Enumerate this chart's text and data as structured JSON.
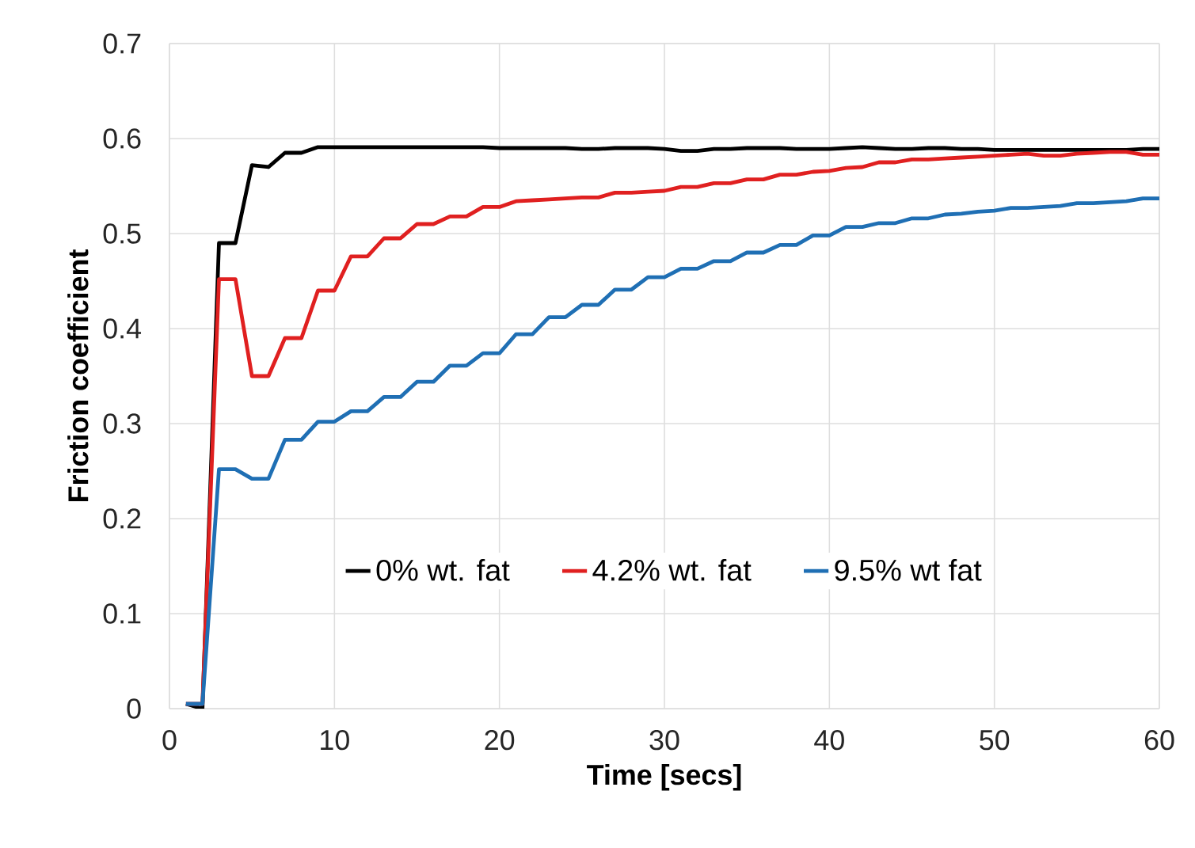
{
  "chart_data": {
    "type": "line",
    "xlabel": "Time [secs]",
    "ylabel": "Friction coefficient",
    "xlim": [
      0,
      60
    ],
    "xticks": [
      0,
      10,
      20,
      30,
      40,
      50,
      60
    ],
    "ylim": [
      0,
      0.7
    ],
    "yticks": [
      0,
      0.1,
      0.2,
      0.3,
      0.4,
      0.5,
      0.6,
      0.7
    ],
    "grid": true,
    "legend": "bottom",
    "x": [
      1,
      2,
      3,
      4,
      5,
      6,
      7,
      8,
      9,
      10,
      11,
      12,
      13,
      14,
      15,
      16,
      17,
      18,
      19,
      20,
      21,
      22,
      23,
      24,
      25,
      26,
      27,
      28,
      29,
      30,
      31,
      32,
      33,
      34,
      35,
      36,
      37,
      38,
      39,
      40,
      41,
      42,
      43,
      44,
      45,
      46,
      47,
      48,
      49,
      50,
      51,
      52,
      53,
      54,
      55,
      56,
      57,
      58,
      59,
      60
    ],
    "series": [
      {
        "name": "0% wt. fat",
        "color": "#000000",
        "values": [
          0.005,
          0.0,
          0.49,
          0.49,
          0.572,
          0.57,
          0.585,
          0.585,
          0.591,
          0.591,
          0.591,
          0.591,
          0.591,
          0.591,
          0.591,
          0.591,
          0.591,
          0.591,
          0.591,
          0.59,
          0.59,
          0.59,
          0.59,
          0.59,
          0.589,
          0.589,
          0.59,
          0.59,
          0.59,
          0.589,
          0.587,
          0.587,
          0.589,
          0.589,
          0.59,
          0.59,
          0.59,
          0.589,
          0.589,
          0.589,
          0.59,
          0.591,
          0.59,
          0.589,
          0.589,
          0.59,
          0.59,
          0.589,
          0.589,
          0.588,
          0.588,
          0.588,
          0.588,
          0.588,
          0.588,
          0.588,
          0.588,
          0.588,
          0.589,
          0.589
        ]
      },
      {
        "name": "4.2% wt. fat",
        "color": "#e02020",
        "values": [
          0.005,
          0.005,
          0.452,
          0.452,
          0.35,
          0.35,
          0.39,
          0.39,
          0.44,
          0.44,
          0.476,
          0.476,
          0.495,
          0.495,
          0.51,
          0.51,
          0.518,
          0.518,
          0.528,
          0.528,
          0.534,
          0.535,
          0.536,
          0.537,
          0.538,
          0.538,
          0.543,
          0.543,
          0.544,
          0.545,
          0.549,
          0.549,
          0.553,
          0.553,
          0.557,
          0.557,
          0.562,
          0.562,
          0.565,
          0.566,
          0.569,
          0.57,
          0.575,
          0.575,
          0.578,
          0.578,
          0.579,
          0.58,
          0.581,
          0.582,
          0.583,
          0.584,
          0.582,
          0.582,
          0.584,
          0.585,
          0.586,
          0.586,
          0.583,
          0.583
        ]
      },
      {
        "name": "9.5% wt fat",
        "color": "#1f6fb4",
        "values": [
          0.005,
          0.005,
          0.252,
          0.252,
          0.242,
          0.242,
          0.283,
          0.283,
          0.302,
          0.302,
          0.313,
          0.313,
          0.328,
          0.328,
          0.344,
          0.344,
          0.361,
          0.361,
          0.374,
          0.374,
          0.394,
          0.394,
          0.412,
          0.412,
          0.425,
          0.425,
          0.441,
          0.441,
          0.454,
          0.454,
          0.463,
          0.463,
          0.471,
          0.471,
          0.48,
          0.48,
          0.488,
          0.488,
          0.498,
          0.498,
          0.507,
          0.507,
          0.511,
          0.511,
          0.516,
          0.516,
          0.52,
          0.521,
          0.523,
          0.524,
          0.527,
          0.527,
          0.528,
          0.529,
          0.532,
          0.532,
          0.533,
          0.534,
          0.537,
          0.537
        ]
      }
    ]
  }
}
